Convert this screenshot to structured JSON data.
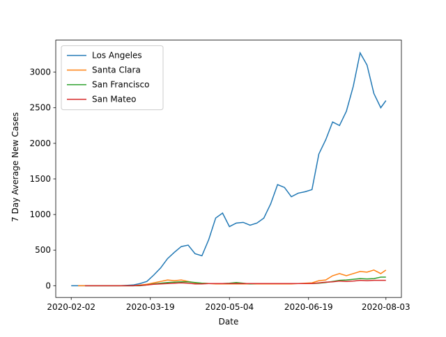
{
  "chart_data": {
    "type": "line",
    "xlabel": "Date",
    "ylabel": "7 Day Average New Cases",
    "x": [
      "2020-02-02",
      "2020-02-06",
      "2020-02-10",
      "2020-02-14",
      "2020-02-18",
      "2020-02-22",
      "2020-02-26",
      "2020-03-01",
      "2020-03-05",
      "2020-03-09",
      "2020-03-13",
      "2020-03-17",
      "2020-03-21",
      "2020-03-25",
      "2020-03-29",
      "2020-04-02",
      "2020-04-06",
      "2020-04-10",
      "2020-04-14",
      "2020-04-18",
      "2020-04-22",
      "2020-04-26",
      "2020-04-30",
      "2020-05-04",
      "2020-05-08",
      "2020-05-12",
      "2020-05-16",
      "2020-05-20",
      "2020-05-24",
      "2020-05-28",
      "2020-06-01",
      "2020-06-05",
      "2020-06-09",
      "2020-06-13",
      "2020-06-17",
      "2020-06-21",
      "2020-06-25",
      "2020-06-29",
      "2020-07-03",
      "2020-07-07",
      "2020-07-11",
      "2020-07-15",
      "2020-07-19",
      "2020-07-23",
      "2020-07-27",
      "2020-07-31",
      "2020-08-03"
    ],
    "series": [
      {
        "name": "Los Angeles",
        "color": "#1f77b4",
        "values": [
          0,
          0,
          0,
          0,
          0,
          0,
          0,
          0,
          5,
          10,
          30,
          60,
          150,
          250,
          380,
          470,
          550,
          570,
          450,
          420,
          650,
          950,
          1020,
          830,
          880,
          890,
          850,
          880,
          950,
          1150,
          1420,
          1380,
          1250,
          1300,
          1320,
          1350,
          1850,
          2050,
          2300,
          2250,
          2450,
          2800,
          3270,
          3100,
          2700,
          2500,
          2600
        ]
      },
      {
        "name": "Santa Clara",
        "color": "#ff7f0e",
        "values": [
          null,
          0,
          0,
          0,
          0,
          0,
          0,
          0,
          0,
          0,
          10,
          20,
          40,
          60,
          80,
          70,
          80,
          60,
          40,
          35,
          30,
          25,
          25,
          25,
          25,
          25,
          25,
          25,
          25,
          25,
          25,
          25,
          25,
          30,
          35,
          40,
          70,
          80,
          140,
          170,
          140,
          170,
          200,
          190,
          220,
          170,
          220
        ]
      },
      {
        "name": "San Francisco",
        "color": "#2ca02c",
        "values": [
          null,
          null,
          0,
          0,
          0,
          0,
          0,
          0,
          0,
          0,
          0,
          10,
          25,
          35,
          45,
          50,
          55,
          55,
          45,
          35,
          30,
          30,
          30,
          35,
          45,
          35,
          25,
          30,
          30,
          30,
          30,
          30,
          30,
          30,
          30,
          30,
          35,
          45,
          60,
          75,
          80,
          90,
          100,
          95,
          100,
          120,
          120
        ]
      },
      {
        "name": "San Mateo",
        "color": "#d62728",
        "values": [
          null,
          null,
          0,
          0,
          0,
          0,
          0,
          0,
          0,
          0,
          5,
          10,
          20,
          25,
          30,
          35,
          40,
          35,
          25,
          25,
          30,
          30,
          30,
          30,
          30,
          30,
          30,
          30,
          30,
          30,
          30,
          30,
          30,
          30,
          30,
          30,
          40,
          50,
          55,
          65,
          60,
          65,
          75,
          70,
          75,
          75,
          75
        ]
      }
    ],
    "xlim": [
      "2020-01-24",
      "2020-08-12"
    ],
    "xticks": [
      "2020-02-02",
      "2020-03-19",
      "2020-05-04",
      "2020-06-19",
      "2020-08-03"
    ],
    "ylim": [
      -165,
      3450
    ],
    "yticks": [
      0,
      500,
      1000,
      1500,
      2000,
      2500,
      3000
    ],
    "legend": "upper left"
  }
}
